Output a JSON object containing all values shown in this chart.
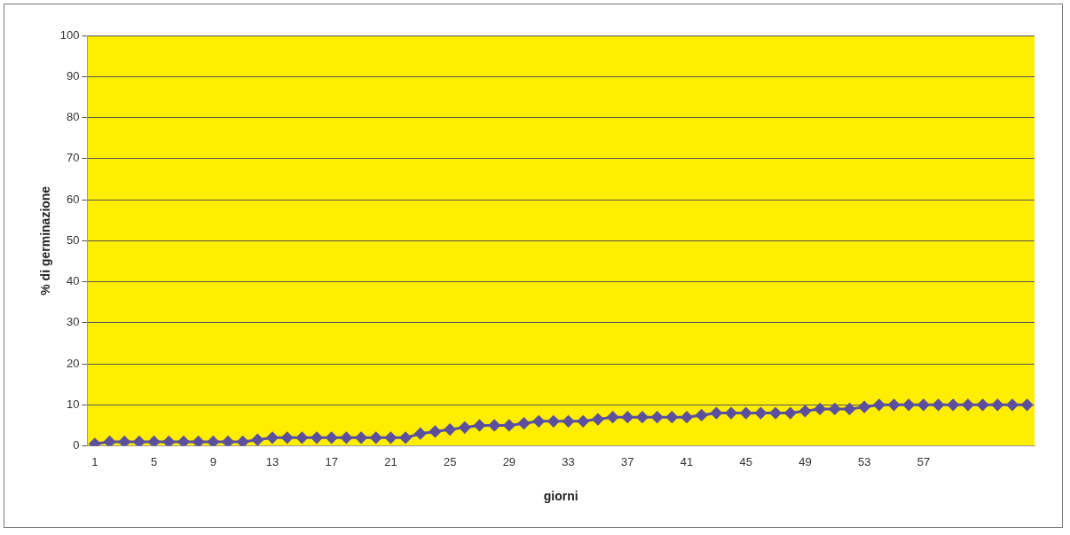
{
  "chart_data": {
    "type": "line",
    "xlabel": "giorni",
    "ylabel": "% di germinazione",
    "categories": [
      "1",
      null,
      null,
      null,
      "5",
      null,
      null,
      null,
      "9",
      null,
      null,
      null,
      "13",
      null,
      null,
      null,
      "17",
      null,
      null,
      null,
      "21",
      null,
      null,
      null,
      "25",
      null,
      null,
      null,
      "29",
      null,
      null,
      null,
      "33",
      null,
      null,
      null,
      "37",
      null,
      null,
      null,
      "41",
      null,
      null,
      null,
      "45",
      null,
      null,
      null,
      "49",
      null,
      null,
      null,
      "53",
      null,
      null,
      null,
      "57",
      null,
      null,
      null,
      null,
      null,
      null,
      null
    ],
    "series": [
      {
        "color": "#5b4f9e",
        "values": [
          0.5,
          1,
          1,
          1,
          1,
          1,
          1,
          1,
          1,
          1,
          1,
          1.5,
          2,
          2,
          2,
          2,
          2,
          2,
          2,
          2,
          2,
          2,
          3,
          3.5,
          4,
          4.5,
          5,
          5,
          5,
          5.5,
          6,
          6,
          6,
          6,
          6.5,
          7,
          7,
          7,
          7,
          7,
          7,
          7.5,
          8,
          8,
          8,
          8,
          8,
          8,
          8.5,
          9,
          9,
          9,
          9.5,
          10,
          10,
          10,
          10,
          10,
          10,
          10,
          10,
          10,
          10,
          10
        ]
      }
    ],
    "ylim": [
      0,
      100
    ],
    "yticks": [
      0,
      10,
      20,
      30,
      40,
      50,
      60,
      70,
      80,
      90,
      100
    ],
    "grid": "y",
    "legend": false,
    "marker": "diamond",
    "line_style": "solid"
  }
}
